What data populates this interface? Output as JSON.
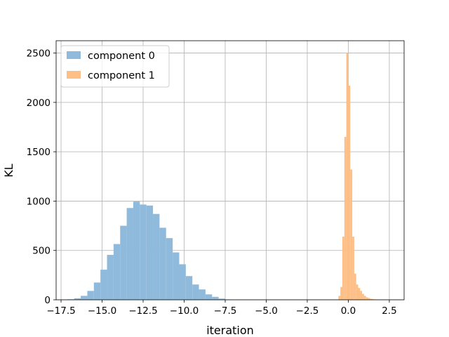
{
  "chart_data": {
    "type": "bar",
    "xlabel": "iteration",
    "ylabel": "KL",
    "xlim": [
      -17.8,
      3.4
    ],
    "ylim": [
      0,
      2625
    ],
    "grid": true,
    "legend_position": "top-left",
    "x_ticks": [
      -17.5,
      -15.0,
      -12.5,
      -10.0,
      -7.5,
      -5.0,
      -2.5,
      0.0,
      2.5
    ],
    "x_tick_labels": [
      "−17.5",
      "−15.0",
      "−12.5",
      "−10.0",
      "−7.5",
      "−5.0",
      "−2.5",
      "0.0",
      "2.5"
    ],
    "y_ticks": [
      0,
      500,
      1000,
      1500,
      2000,
      2500
    ],
    "y_tick_labels": [
      "0",
      "500",
      "1000",
      "1500",
      "2000",
      "2500"
    ],
    "series": [
      {
        "name": "component 0",
        "color": "#8fbadb",
        "bins": [
          {
            "x0": -17.1,
            "x1": -16.7,
            "y": 5
          },
          {
            "x0": -16.7,
            "x1": -16.3,
            "y": 15
          },
          {
            "x0": -16.3,
            "x1": -15.9,
            "y": 40
          },
          {
            "x0": -15.9,
            "x1": -15.5,
            "y": 90
          },
          {
            "x0": -15.5,
            "x1": -15.1,
            "y": 175
          },
          {
            "x0": -15.1,
            "x1": -14.7,
            "y": 305
          },
          {
            "x0": -14.7,
            "x1": -14.3,
            "y": 455
          },
          {
            "x0": -14.3,
            "x1": -13.9,
            "y": 565
          },
          {
            "x0": -13.9,
            "x1": -13.5,
            "y": 750
          },
          {
            "x0": -13.5,
            "x1": -13.1,
            "y": 930
          },
          {
            "x0": -13.1,
            "x1": -12.7,
            "y": 995
          },
          {
            "x0": -12.7,
            "x1": -12.3,
            "y": 965
          },
          {
            "x0": -12.3,
            "x1": -11.9,
            "y": 955
          },
          {
            "x0": -11.9,
            "x1": -11.5,
            "y": 870
          },
          {
            "x0": -11.5,
            "x1": -11.1,
            "y": 730
          },
          {
            "x0": -11.1,
            "x1": -10.7,
            "y": 625
          },
          {
            "x0": -10.7,
            "x1": -10.3,
            "y": 480
          },
          {
            "x0": -10.3,
            "x1": -9.9,
            "y": 360
          },
          {
            "x0": -9.9,
            "x1": -9.5,
            "y": 240
          },
          {
            "x0": -9.5,
            "x1": -9.1,
            "y": 155
          },
          {
            "x0": -9.1,
            "x1": -8.7,
            "y": 105
          },
          {
            "x0": -8.7,
            "x1": -8.3,
            "y": 55
          },
          {
            "x0": -8.3,
            "x1": -7.9,
            "y": 30
          },
          {
            "x0": -7.9,
            "x1": -7.5,
            "y": 12
          },
          {
            "x0": -7.5,
            "x1": -7.1,
            "y": 4
          }
        ]
      },
      {
        "name": "component 1",
        "color": "#fdbf86",
        "bins": [
          {
            "x0": -0.6,
            "x1": -0.48,
            "y": 40
          },
          {
            "x0": -0.48,
            "x1": -0.36,
            "y": 130
          },
          {
            "x0": -0.36,
            "x1": -0.24,
            "y": 640
          },
          {
            "x0": -0.24,
            "x1": -0.12,
            "y": 1650
          },
          {
            "x0": -0.12,
            "x1": 0.0,
            "y": 2500
          },
          {
            "x0": 0.0,
            "x1": 0.12,
            "y": 2170
          },
          {
            "x0": 0.12,
            "x1": 0.24,
            "y": 1320
          },
          {
            "x0": 0.24,
            "x1": 0.36,
            "y": 640
          },
          {
            "x0": 0.36,
            "x1": 0.48,
            "y": 265
          },
          {
            "x0": 0.48,
            "x1": 0.6,
            "y": 155
          },
          {
            "x0": 0.6,
            "x1": 0.72,
            "y": 120
          },
          {
            "x0": 0.72,
            "x1": 0.84,
            "y": 90
          },
          {
            "x0": 0.84,
            "x1": 0.96,
            "y": 60
          },
          {
            "x0": 0.96,
            "x1": 1.08,
            "y": 40
          },
          {
            "x0": 1.08,
            "x1": 1.2,
            "y": 25
          },
          {
            "x0": 1.2,
            "x1": 1.32,
            "y": 18
          },
          {
            "x0": 1.32,
            "x1": 1.44,
            "y": 10
          },
          {
            "x0": 1.44,
            "x1": 1.56,
            "y": 7
          },
          {
            "x0": 1.56,
            "x1": 1.68,
            "y": 4
          }
        ]
      }
    ]
  }
}
